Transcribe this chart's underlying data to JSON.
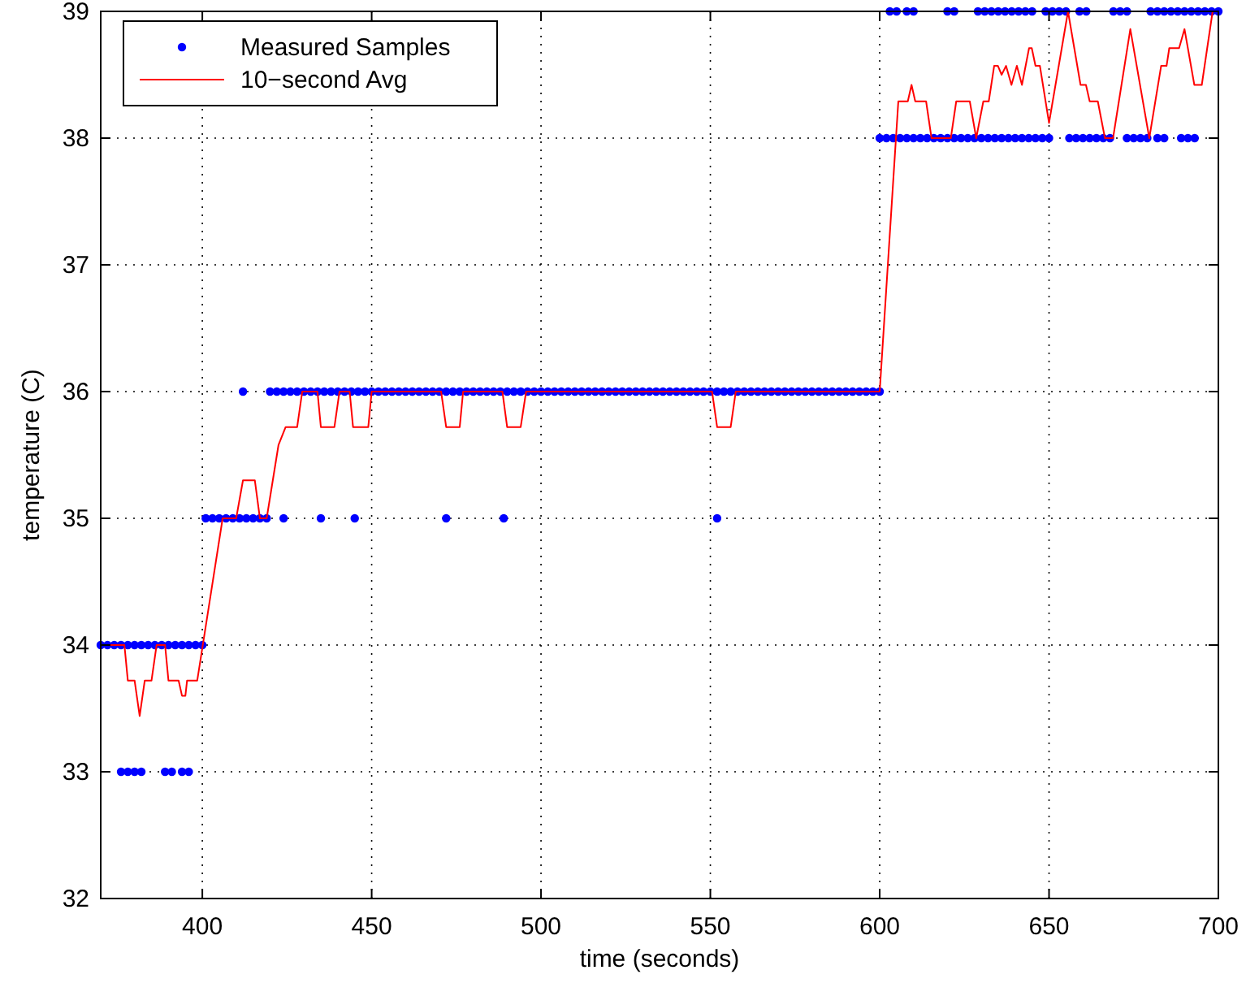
{
  "chart_data": {
    "type": "scatter",
    "xlabel": "time (seconds)",
    "ylabel": "temperature (C)",
    "xlim": [
      370,
      700
    ],
    "xticks": [
      400,
      450,
      500,
      550,
      600,
      650,
      700
    ],
    "ylim": [
      32,
      39
    ],
    "yticks": [
      32,
      33,
      34,
      35,
      36,
      37,
      38,
      39
    ],
    "grid": true,
    "legend": "top left",
    "series": [
      {
        "name": "Measured Samples",
        "color": "#0000ff",
        "marker": "circle",
        "x": [
          370,
          372,
          374,
          376,
          378,
          380,
          382,
          384,
          386,
          388,
          390,
          392,
          394,
          396,
          398,
          400,
          376,
          378,
          380,
          382,
          389,
          391,
          394,
          396,
          401,
          403,
          405,
          407,
          409,
          411,
          413,
          415,
          417,
          419,
          424,
          435,
          445,
          472,
          489,
          552,
          412,
          420,
          422,
          424,
          426,
          428,
          430,
          432,
          434,
          436,
          438,
          440,
          442,
          444,
          446,
          448,
          450,
          452,
          454,
          456,
          458,
          460,
          462,
          464,
          466,
          468,
          470,
          472,
          474,
          476,
          478,
          480,
          482,
          484,
          486,
          488,
          490,
          492,
          494,
          496,
          498,
          500,
          502,
          504,
          506,
          508,
          510,
          512,
          514,
          516,
          518,
          520,
          522,
          524,
          526,
          528,
          530,
          532,
          534,
          536,
          538,
          540,
          542,
          544,
          546,
          548,
          550,
          552,
          554,
          556,
          558,
          560,
          562,
          564,
          566,
          568,
          570,
          572,
          574,
          576,
          578,
          580,
          582,
          584,
          586,
          588,
          590,
          592,
          594,
          596,
          598,
          600,
          600,
          602,
          604,
          606,
          608,
          610,
          612,
          614,
          616,
          618,
          620,
          622,
          624,
          626,
          628,
          630,
          632,
          634,
          636,
          638,
          640,
          642,
          644,
          646,
          648,
          650,
          656,
          658,
          660,
          662,
          664,
          666,
          668,
          673,
          675,
          677,
          679,
          682,
          684,
          689,
          691,
          693,
          603,
          605,
          608,
          610,
          620,
          622,
          629,
          631,
          633,
          635,
          637,
          639,
          641,
          643,
          645,
          649,
          651,
          653,
          655,
          659,
          661,
          669,
          671,
          673,
          680,
          682,
          684,
          686,
          688,
          690,
          692,
          694,
          696,
          698,
          700
        ],
        "values": [
          34,
          34,
          34,
          34,
          34,
          34,
          34,
          34,
          34,
          34,
          34,
          34,
          34,
          34,
          34,
          34,
          33,
          33,
          33,
          33,
          33,
          33,
          33,
          33,
          35,
          35,
          35,
          35,
          35,
          35,
          35,
          35,
          35,
          35,
          35,
          35,
          35,
          35,
          35,
          35,
          36,
          36,
          36,
          36,
          36,
          36,
          36,
          36,
          36,
          36,
          36,
          36,
          36,
          36,
          36,
          36,
          36,
          36,
          36,
          36,
          36,
          36,
          36,
          36,
          36,
          36,
          36,
          36,
          36,
          36,
          36,
          36,
          36,
          36,
          36,
          36,
          36,
          36,
          36,
          36,
          36,
          36,
          36,
          36,
          36,
          36,
          36,
          36,
          36,
          36,
          36,
          36,
          36,
          36,
          36,
          36,
          36,
          36,
          36,
          36,
          36,
          36,
          36,
          36,
          36,
          36,
          36,
          36,
          36,
          36,
          36,
          36,
          36,
          36,
          36,
          36,
          36,
          36,
          36,
          36,
          36,
          36,
          36,
          36,
          36,
          36,
          36,
          36,
          36,
          36,
          36,
          36,
          38,
          38,
          38,
          38,
          38,
          38,
          38,
          38,
          38,
          38,
          38,
          38,
          38,
          38,
          38,
          38,
          38,
          38,
          38,
          38,
          38,
          38,
          38,
          38,
          38,
          38,
          38,
          38,
          38,
          38,
          38,
          38,
          38,
          38,
          38,
          38,
          38,
          38,
          38,
          38,
          38,
          38,
          39,
          39,
          39,
          39,
          39,
          39,
          39,
          39,
          39,
          39,
          39,
          39,
          39,
          39,
          39,
          39,
          39,
          39,
          39,
          39,
          39,
          39,
          39,
          39,
          39,
          39,
          39,
          39,
          39,
          39,
          39,
          39,
          39,
          39,
          39
        ]
      },
      {
        "name": "10−second Avg",
        "type": "line",
        "color": "#ff0000",
        "marker": "none",
        "line_style": "solid",
        "x": [
          370,
          377,
          378,
          380,
          381.5,
          383,
          385,
          386.5,
          389,
          390,
          393,
          394,
          395,
          395.5,
          398.5,
          406,
          410,
          412,
          415.5,
          417,
          419,
          422.5,
          424.6,
          428,
          429.5,
          434,
          435,
          439,
          440.5,
          443.5,
          444.5,
          449,
          450,
          470.5,
          472,
          476,
          477,
          488.6,
          490,
          494,
          495.6,
          550.5,
          552,
          556,
          557.5,
          600,
          605.5,
          608.3,
          609.4,
          610.5,
          613.7,
          615.3,
          621,
          622.6,
          626.6,
          628.5,
          630.6,
          632.2,
          633.8,
          634.9,
          636,
          637.3,
          638.9,
          640.5,
          642,
          644.1,
          644.9,
          646,
          647.3,
          650,
          655.6,
          659.3,
          660.9,
          662,
          664.4,
          666.5,
          668.9,
          674,
          679.6,
          683.1,
          684.7,
          685.5,
          688.4,
          690,
          692.9,
          695.1,
          698.3,
          700
        ],
        "values": [
          34,
          34,
          33.72,
          33.72,
          33.44,
          33.72,
          33.72,
          34,
          34,
          33.72,
          33.72,
          33.6,
          33.6,
          33.72,
          33.72,
          35,
          35,
          35.3,
          35.3,
          35,
          35,
          35.58,
          35.72,
          35.72,
          36,
          36,
          35.72,
          35.72,
          36,
          36,
          35.72,
          35.72,
          36,
          36,
          35.72,
          35.72,
          36,
          36,
          35.72,
          35.72,
          36,
          36,
          35.72,
          35.72,
          36,
          36,
          38.29,
          38.29,
          38.42,
          38.29,
          38.29,
          38,
          38,
          38.29,
          38.29,
          38,
          38.29,
          38.29,
          38.57,
          38.57,
          38.5,
          38.57,
          38.42,
          38.57,
          38.42,
          38.71,
          38.71,
          38.57,
          38.57,
          38.12,
          39,
          38.42,
          38.42,
          38.29,
          38.29,
          38,
          38,
          38.86,
          38,
          38.57,
          38.57,
          38.71,
          38.71,
          38.86,
          38.42,
          38.42,
          39,
          39
        ]
      }
    ]
  }
}
